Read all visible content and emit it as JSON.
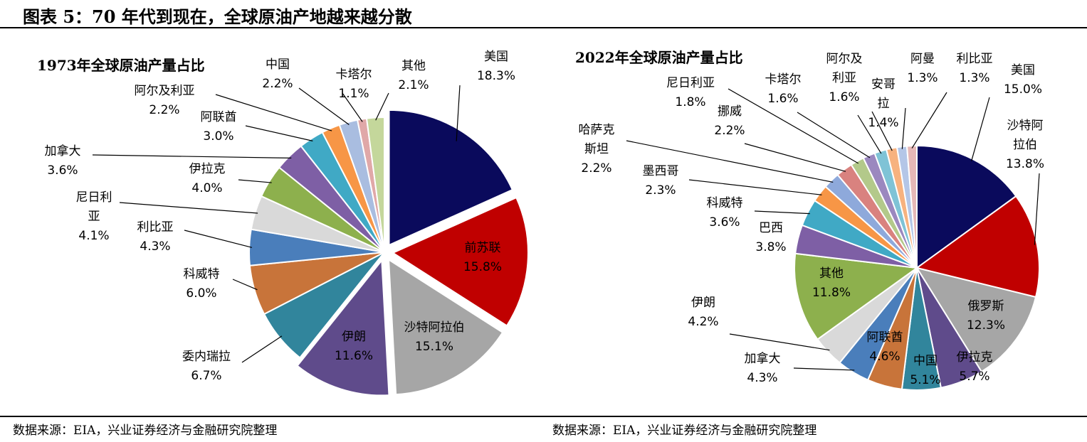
{
  "title": "图表 5：70 年代到现在，全球原油产地越来越分散",
  "source_left": "数据来源：EIA，兴业证券经济与金融研究院整理",
  "source_right": "数据来源：EIA，兴业证券经济与金融研究院整理",
  "chart_data": [
    {
      "type": "pie",
      "title": "1973年全球原油产量占比",
      "slices": [
        {
          "name": "美国",
          "value": 18.3,
          "label": "18.3%",
          "color": "#0a0a5c",
          "name_label": "美国"
        },
        {
          "name": "前苏联",
          "value": 15.8,
          "label": "15.8%",
          "color": "#c00000",
          "name_label": "前苏联"
        },
        {
          "name": "沙特阿拉伯",
          "value": 15.1,
          "label": "15.1%",
          "color": "#a6a6a6",
          "name_label": "沙特阿拉伯"
        },
        {
          "name": "伊朗",
          "value": 11.6,
          "label": "11.6%",
          "color": "#5f4b8b",
          "name_label": "伊朗"
        },
        {
          "name": "委内瑞拉",
          "value": 6.7,
          "label": "6.7%",
          "color": "#31859c",
          "name_label": "委内瑞拉"
        },
        {
          "name": "科威特",
          "value": 6.0,
          "label": "6.0%",
          "color": "#c8743a",
          "name_label": "科威特"
        },
        {
          "name": "利比亚",
          "value": 4.3,
          "label": "4.3%",
          "color": "#4a7ebb",
          "name_label": "利比亚"
        },
        {
          "name": "尼日利亚",
          "value": 4.1,
          "label": "4.1%",
          "color": "#d9d9d9",
          "name_label": "尼日利亚"
        },
        {
          "name": "伊拉克",
          "value": 4.0,
          "label": "4.0%",
          "color": "#8db04d",
          "name_label": "伊拉克"
        },
        {
          "name": "加拿大",
          "value": 3.6,
          "label": "3.6%",
          "color": "#7e5fa5",
          "name_label": "加拿大"
        },
        {
          "name": "阿联酋",
          "value": 3.0,
          "label": "3.0%",
          "color": "#40a9c5",
          "name_label": "阿联酋"
        },
        {
          "name": "阿尔及利亚",
          "value": 2.2,
          "label": "2.2%",
          "color": "#f79646",
          "name_label": "阿尔及利亚"
        },
        {
          "name": "中国",
          "value": 2.2,
          "label": "2.2%",
          "color": "#a9bde0",
          "name_label": "中国"
        },
        {
          "name": "卡塔尔",
          "value": 1.1,
          "label": "1.1%",
          "color": "#e0a8a8",
          "name_label": "卡塔尔"
        },
        {
          "name": "其他",
          "value": 2.1,
          "label": "2.1%",
          "color": "#c4d79b",
          "name_label": "其他"
        }
      ]
    },
    {
      "type": "pie",
      "title": "2022年全球原油产量占比",
      "slices": [
        {
          "name": "美国",
          "value": 15.0,
          "label": "15.0%",
          "color": "#0a0a5c",
          "name_label": "美国"
        },
        {
          "name": "沙特阿拉伯",
          "value": 13.8,
          "label": "13.8%",
          "color": "#c00000",
          "name_label": "沙特阿拉伯"
        },
        {
          "name": "俄罗斯",
          "value": 12.3,
          "label": "12.3%",
          "color": "#a6a6a6",
          "name_label": "俄罗斯"
        },
        {
          "name": "伊拉克",
          "value": 5.7,
          "label": "5.7%",
          "color": "#5f4b8b",
          "name_label": "伊拉克"
        },
        {
          "name": "中国",
          "value": 5.1,
          "label": "5.1%",
          "color": "#31859c",
          "name_label": "中国"
        },
        {
          "name": "阿联酋",
          "value": 4.6,
          "label": "4.6%",
          "color": "#c8743a",
          "name_label": "阿联酋"
        },
        {
          "name": "加拿大",
          "value": 4.3,
          "label": "4.3%",
          "color": "#4a7ebb",
          "name_label": "加拿大"
        },
        {
          "name": "伊朗",
          "value": 4.2,
          "label": "4.2%",
          "color": "#d9d9d9",
          "name_label": "伊朗"
        },
        {
          "name": "其他",
          "value": 11.8,
          "label": "11.8%",
          "color": "#8db04d",
          "name_label": "其他"
        },
        {
          "name": "巴西",
          "value": 3.8,
          "label": "3.8%",
          "color": "#7e5fa5",
          "name_label": "巴西"
        },
        {
          "name": "科威特",
          "value": 3.6,
          "label": "3.6%",
          "color": "#40a9c5",
          "name_label": "科威特"
        },
        {
          "name": "墨西哥",
          "value": 2.3,
          "label": "2.3%",
          "color": "#f79646",
          "name_label": "墨西哥"
        },
        {
          "name": "哈萨克斯坦",
          "value": 2.2,
          "label": "2.2%",
          "color": "#8ea9db",
          "name_label": "哈萨克斯坦"
        },
        {
          "name": "挪威",
          "value": 2.2,
          "label": "2.2%",
          "color": "#d9827f",
          "name_label": "挪威"
        },
        {
          "name": "尼日利亚",
          "value": 1.8,
          "label": "1.8%",
          "color": "#b3c98a",
          "name_label": "尼日利亚"
        },
        {
          "name": "卡塔尔",
          "value": 1.6,
          "label": "1.6%",
          "color": "#9b88bf",
          "name_label": "卡塔尔"
        },
        {
          "name": "阿尔及利亚",
          "value": 1.6,
          "label": "1.6%",
          "color": "#7fc3d6",
          "name_label": "阿尔及利亚"
        },
        {
          "name": "安哥拉",
          "value": 1.4,
          "label": "1.4%",
          "color": "#f7b27f",
          "name_label": "安哥拉"
        },
        {
          "name": "阿曼",
          "value": 1.3,
          "label": "1.3%",
          "color": "#b4c6e7",
          "name_label": "阿曼"
        },
        {
          "name": "利比亚",
          "value": 1.3,
          "label": "1.3%",
          "color": "#e6b8b7",
          "name_label": "利比亚"
        }
      ]
    }
  ]
}
